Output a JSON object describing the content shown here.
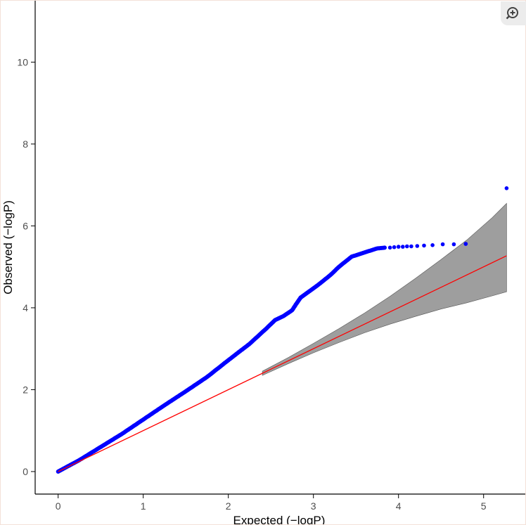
{
  "chart_data": {
    "type": "scatter",
    "title": "",
    "xlabel": "Expected (−logP)",
    "ylabel": "Observed (−logP)",
    "xlim": [
      -0.27,
      5.49
    ],
    "ylim": [
      -0.55,
      11.5
    ],
    "x_ticks": [
      0,
      1,
      2,
      3,
      4,
      5
    ],
    "y_ticks": [
      0,
      2,
      4,
      6,
      8,
      10
    ],
    "grid": false,
    "legend": "none",
    "series": [
      {
        "kind": "points",
        "color": "#0000ff",
        "curve": [
          [
            0,
            0
          ],
          [
            0.25,
            0.28
          ],
          [
            0.5,
            0.6
          ],
          [
            0.75,
            0.92
          ],
          [
            1.0,
            1.27
          ],
          [
            1.25,
            1.62
          ],
          [
            1.5,
            1.96
          ],
          [
            1.75,
            2.31
          ],
          [
            2.0,
            2.72
          ],
          [
            2.25,
            3.12
          ],
          [
            2.45,
            3.5
          ],
          [
            2.55,
            3.7
          ],
          [
            2.65,
            3.8
          ],
          [
            2.75,
            3.94
          ],
          [
            2.8,
            4.1
          ],
          [
            2.85,
            4.25
          ],
          [
            2.95,
            4.4
          ],
          [
            3.05,
            4.55
          ],
          [
            3.2,
            4.8
          ],
          [
            3.3,
            5.0
          ],
          [
            3.45,
            5.25
          ],
          [
            3.6,
            5.35
          ],
          [
            3.75,
            5.45
          ],
          [
            3.85,
            5.47
          ]
        ],
        "tail_points": [
          [
            3.9,
            5.47
          ],
          [
            3.95,
            5.48
          ],
          [
            4.0,
            5.49
          ],
          [
            4.05,
            5.49
          ],
          [
            4.1,
            5.5
          ],
          [
            4.15,
            5.5
          ],
          [
            4.22,
            5.51
          ],
          [
            4.3,
            5.52
          ],
          [
            4.4,
            5.53
          ],
          [
            4.52,
            5.55
          ],
          [
            4.65,
            5.55
          ],
          [
            4.79,
            5.56
          ],
          [
            4.79,
            5.56
          ],
          [
            5.27,
            6.92
          ]
        ]
      },
      {
        "kind": "line",
        "color": "#ff0000",
        "x": [
          0,
          5.27
        ],
        "y": [
          0,
          5.27
        ]
      },
      {
        "kind": "band",
        "color": "#9e9e9e",
        "x": [
          2.4,
          2.7,
          3.0,
          3.3,
          3.6,
          3.9,
          4.2,
          4.5,
          4.8,
          5.1,
          5.27
        ],
        "lower": [
          2.35,
          2.63,
          2.9,
          3.15,
          3.39,
          3.6,
          3.79,
          3.97,
          4.12,
          4.29,
          4.39
        ],
        "upper": [
          2.45,
          2.78,
          3.13,
          3.49,
          3.87,
          4.28,
          4.72,
          5.18,
          5.65,
          6.2,
          6.55
        ]
      }
    ]
  },
  "toolbar": {
    "zoom_icon": "zoom-in-icon"
  }
}
